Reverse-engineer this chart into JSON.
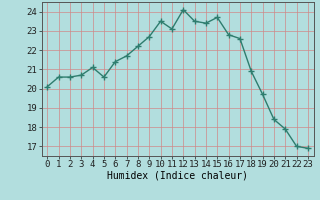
{
  "x": [
    0,
    1,
    2,
    3,
    4,
    5,
    6,
    7,
    8,
    9,
    10,
    11,
    12,
    13,
    14,
    15,
    16,
    17,
    18,
    19,
    20,
    21,
    22,
    23
  ],
  "y": [
    20.1,
    20.6,
    20.6,
    20.7,
    21.1,
    20.6,
    21.4,
    21.7,
    22.2,
    22.7,
    23.5,
    23.1,
    24.1,
    23.5,
    23.4,
    23.7,
    22.8,
    22.6,
    20.9,
    19.7,
    18.4,
    17.9,
    17.0,
    16.9
  ],
  "line_color": "#2e7d6e",
  "marker": "+",
  "marker_size": 4,
  "marker_linewidth": 1.0,
  "line_width": 1.0,
  "bg_color": "#b2dede",
  "plot_bg_color": "#b2dede",
  "grid_color": "#d08888",
  "xlabel": "Humidex (Indice chaleur)",
  "ylim": [
    16.5,
    24.5
  ],
  "xlim": [
    -0.5,
    23.5
  ],
  "yticks": [
    17,
    18,
    19,
    20,
    21,
    22,
    23,
    24
  ],
  "xtick_labels": [
    "0",
    "1",
    "2",
    "3",
    "4",
    "5",
    "6",
    "7",
    "8",
    "9",
    "10",
    "11",
    "12",
    "13",
    "14",
    "15",
    "16",
    "17",
    "18",
    "19",
    "20",
    "21",
    "22",
    "23"
  ],
  "xlabel_fontsize": 7,
  "tick_fontsize": 6.5
}
